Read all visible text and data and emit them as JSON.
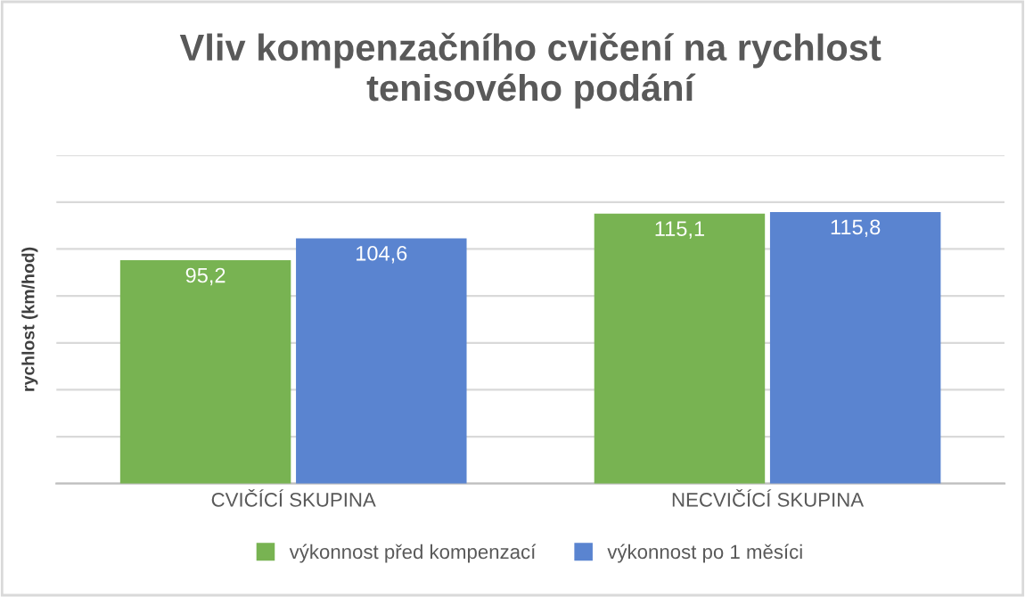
{
  "chart_data": {
    "type": "bar",
    "title": "Vliv kompenzačního cvičení na rychlost\ntenisového podání",
    "ylabel": "rychlost (km/hod)",
    "categories": [
      "CVIČÍCÍ SKUPINA",
      "NECVIČÍCÍ SKUPINA"
    ],
    "series": [
      {
        "name": "výkonnost před kompenzací",
        "color": "#78b352",
        "values": [
          95.2,
          115.1
        ],
        "value_labels": [
          "95,2",
          "115,1"
        ]
      },
      {
        "name": "výkonnost po 1 měsíci",
        "color": "#5a84d0",
        "values": [
          104.6,
          115.8
        ],
        "value_labels": [
          "104,6",
          "115,8"
        ]
      }
    ],
    "ylim": [
      0,
      140
    ],
    "yticks": [
      {
        "value": 0,
        "label": null
      },
      {
        "value": 20,
        "label": null
      },
      {
        "value": 40,
        "label": null
      },
      {
        "value": 60,
        "label": null
      },
      {
        "value": 80,
        "label": null
      },
      {
        "value": 100,
        "label": null
      },
      {
        "value": 120,
        "label": null
      },
      {
        "value": 140,
        "label": null
      }
    ],
    "grid": "y",
    "legend": "bottom"
  }
}
